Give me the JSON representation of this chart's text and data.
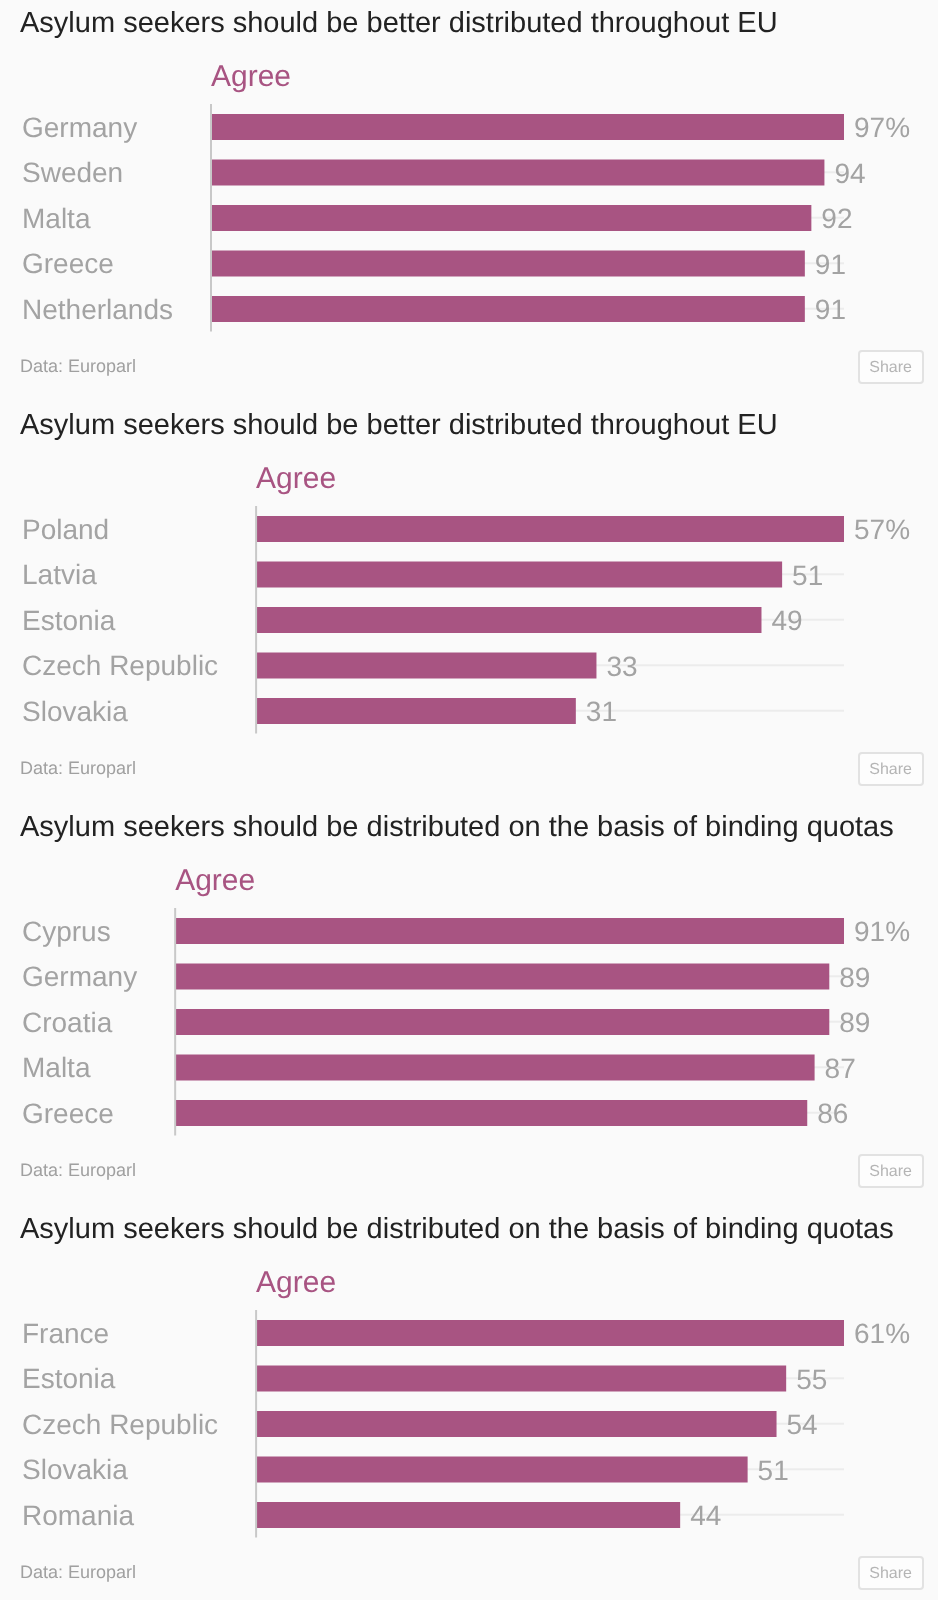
{
  "chart_data": [
    {
      "type": "bar",
      "orientation": "horizontal",
      "title": "Asylum seekers should be better distributed throughout EU",
      "categories": [
        "Germany",
        "Sweden",
        "Malta",
        "Greece",
        "Netherlands"
      ],
      "series": [
        {
          "name": "Agree",
          "color": "#a85482",
          "values": [
            97,
            94,
            92,
            91,
            91
          ],
          "value_labels": [
            "97%",
            "94",
            "92",
            "91",
            "91"
          ]
        }
      ],
      "xlim": [
        0,
        97
      ],
      "grid": "y",
      "tick_labels": "y",
      "annotations": [
        "Data: Europarl",
        "Share"
      ]
    },
    {
      "type": "bar",
      "orientation": "horizontal",
      "title": "Asylum seekers should be better distributed throughout EU",
      "categories": [
        "Poland",
        "Latvia",
        "Estonia",
        "Czech Republic",
        "Slovakia"
      ],
      "series": [
        {
          "name": "Agree",
          "color": "#a85482",
          "values": [
            57,
            51,
            49,
            33,
            31
          ],
          "value_labels": [
            "57%",
            "51",
            "49",
            "33",
            "31"
          ]
        }
      ],
      "xlim": [
        0,
        57
      ],
      "grid": "y",
      "tick_labels": "y",
      "annotations": [
        "Data: Europarl",
        "Share"
      ]
    },
    {
      "type": "bar",
      "orientation": "horizontal",
      "title": "Asylum seekers should be distributed on the basis of binding quotas",
      "categories": [
        "Cyprus",
        "Germany",
        "Croatia",
        "Malta",
        "Greece"
      ],
      "series": [
        {
          "name": "Agree",
          "color": "#a85482",
          "values": [
            91,
            89,
            89,
            87,
            86
          ],
          "value_labels": [
            "91%",
            "89",
            "89",
            "87",
            "86"
          ]
        }
      ],
      "xlim": [
        0,
        91
      ],
      "grid": "y",
      "tick_labels": "y",
      "annotations": [
        "Data: Europarl",
        "Share"
      ]
    },
    {
      "type": "bar",
      "orientation": "horizontal",
      "title": "Asylum seekers should be distributed on the basis of binding quotas",
      "categories": [
        "France",
        "Estonia",
        "Czech Republic",
        "Slovakia",
        "Romania"
      ],
      "series": [
        {
          "name": "Agree",
          "color": "#a85482",
          "values": [
            61,
            55,
            54,
            51,
            44
          ],
          "value_labels": [
            "61%",
            "55",
            "54",
            "51",
            "44"
          ]
        }
      ],
      "xlim": [
        0,
        61
      ],
      "grid": "y",
      "tick_labels": "y",
      "annotations": [
        "Data: Europarl",
        "Share"
      ]
    }
  ]
}
